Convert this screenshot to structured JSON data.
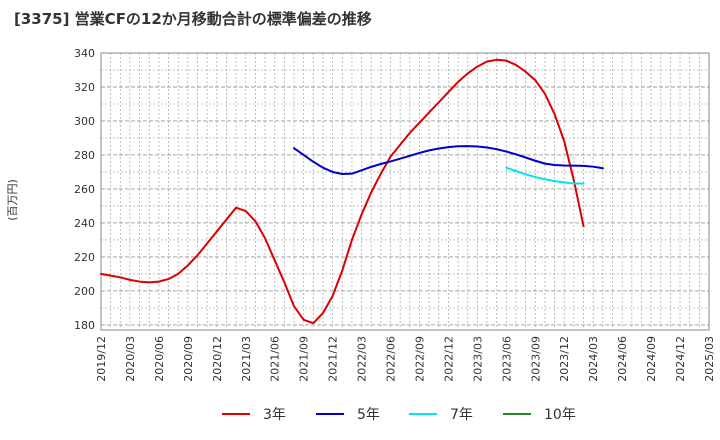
{
  "chart_data": {
    "type": "line",
    "title": "[3375]  営業CFの12か月移動合計の標準偏差の推移",
    "ylabel": "(百万円)",
    "xlabel": "",
    "ylim": [
      177,
      340
    ],
    "yticks": [
      180,
      200,
      220,
      240,
      260,
      280,
      300,
      320,
      340
    ],
    "xlim": [
      "2019/12",
      "2025/03"
    ],
    "xticks": [
      "2019/12",
      "2020/03",
      "2020/06",
      "2020/09",
      "2020/12",
      "2021/03",
      "2021/06",
      "2021/09",
      "2021/12",
      "2022/03",
      "2022/06",
      "2022/09",
      "2022/12",
      "2023/03",
      "2023/06",
      "2023/09",
      "2023/12",
      "2024/03",
      "2024/06",
      "2024/09",
      "2024/12",
      "2025/03"
    ],
    "grid": true,
    "legend_position": "bottom",
    "series": [
      {
        "name": "3年",
        "color": "#dd0000",
        "points": [
          [
            "2019/12",
            210
          ],
          [
            "2020/01",
            209
          ],
          [
            "2020/02",
            208
          ],
          [
            "2020/03",
            206.5
          ],
          [
            "2020/04",
            205.5
          ],
          [
            "2020/05",
            205
          ],
          [
            "2020/06",
            205.5
          ],
          [
            "2020/07",
            207
          ],
          [
            "2020/08",
            210
          ],
          [
            "2020/09",
            215
          ],
          [
            "2020/10",
            221
          ],
          [
            "2020/11",
            228
          ],
          [
            "2020/12",
            235
          ],
          [
            "2021/01",
            242
          ],
          [
            "2021/02",
            249
          ],
          [
            "2021/03",
            247
          ],
          [
            "2021/04",
            241
          ],
          [
            "2021/05",
            231
          ],
          [
            "2021/06",
            218
          ],
          [
            "2021/07",
            205
          ],
          [
            "2021/08",
            191
          ],
          [
            "2021/09",
            183
          ],
          [
            "2021/10",
            181
          ],
          [
            "2021/11",
            187
          ],
          [
            "2021/12",
            197
          ],
          [
            "2022/01",
            212
          ],
          [
            "2022/02",
            230
          ],
          [
            "2022/03",
            245
          ],
          [
            "2022/04",
            258
          ],
          [
            "2022/05",
            269
          ],
          [
            "2022/06",
            279
          ],
          [
            "2022/07",
            286
          ],
          [
            "2022/08",
            293
          ],
          [
            "2022/09",
            299
          ],
          [
            "2022/10",
            305
          ],
          [
            "2022/11",
            311
          ],
          [
            "2022/12",
            317
          ],
          [
            "2023/01",
            323
          ],
          [
            "2023/02",
            328
          ],
          [
            "2023/03",
            332
          ],
          [
            "2023/04",
            335
          ],
          [
            "2023/05",
            336
          ],
          [
            "2023/06",
            335.5
          ],
          [
            "2023/07",
            333
          ],
          [
            "2023/08",
            329
          ],
          [
            "2023/09",
            324
          ],
          [
            "2023/10",
            316
          ],
          [
            "2023/11",
            304
          ],
          [
            "2023/12",
            288
          ],
          [
            "2024/01",
            265
          ],
          [
            "2024/02",
            238
          ]
        ]
      },
      {
        "name": "5年",
        "color": "#0000cc",
        "points": [
          [
            "2021/08",
            284
          ],
          [
            "2021/09",
            280
          ],
          [
            "2021/10",
            276
          ],
          [
            "2021/11",
            272.5
          ],
          [
            "2021/12",
            270
          ],
          [
            "2022/01",
            268.8
          ],
          [
            "2022/02",
            269
          ],
          [
            "2022/03",
            271
          ],
          [
            "2022/04",
            273
          ],
          [
            "2022/05",
            274.7
          ],
          [
            "2022/06",
            276.2
          ],
          [
            "2022/07",
            277.8
          ],
          [
            "2022/08",
            279.5
          ],
          [
            "2022/09",
            281.2
          ],
          [
            "2022/10",
            282.7
          ],
          [
            "2022/11",
            283.8
          ],
          [
            "2022/12",
            284.6
          ],
          [
            "2023/01",
            285.1
          ],
          [
            "2023/02",
            285.2
          ],
          [
            "2023/03",
            285
          ],
          [
            "2023/04",
            284.4
          ],
          [
            "2023/05",
            283.4
          ],
          [
            "2023/06",
            282
          ],
          [
            "2023/07",
            280.4
          ],
          [
            "2023/08",
            278.5
          ],
          [
            "2023/09",
            276.6
          ],
          [
            "2023/10",
            274.9
          ],
          [
            "2023/11",
            274.1
          ],
          [
            "2023/12",
            273.8
          ],
          [
            "2024/01",
            273.7
          ],
          [
            "2024/02",
            273.6
          ],
          [
            "2024/03",
            273.1
          ],
          [
            "2024/04",
            272.2
          ]
        ]
      },
      {
        "name": "7年",
        "color": "#00e5ee",
        "points": [
          [
            "2023/06",
            272.5
          ],
          [
            "2023/07",
            270.5
          ],
          [
            "2023/08",
            268.6
          ],
          [
            "2023/09",
            267
          ],
          [
            "2023/10",
            265.7
          ],
          [
            "2023/11",
            264.6
          ],
          [
            "2023/12",
            263.8
          ],
          [
            "2024/01",
            263.2
          ],
          [
            "2024/02",
            263.2
          ]
        ]
      },
      {
        "name": "10年",
        "color": "#228822",
        "points": []
      }
    ]
  }
}
